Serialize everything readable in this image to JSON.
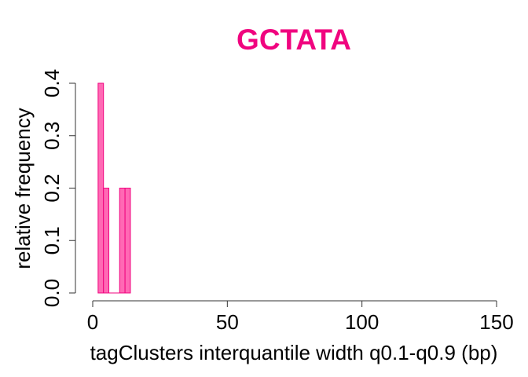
{
  "chart_data": {
    "type": "bar",
    "title": "GCTATA",
    "xlabel": "tagClusters interquantile width q0.1-q0.9 (bp)",
    "ylabel": "relative frequency",
    "xlim": [
      0,
      150
    ],
    "ylim": [
      0,
      0.4
    ],
    "xticks": [
      "0",
      "50",
      "100",
      "150"
    ],
    "yticks": [
      "0.0",
      "0.1",
      "0.2",
      "0.3",
      "0.4"
    ],
    "bin_width": 2,
    "bins": [
      {
        "x0": 2,
        "x1": 4,
        "value": 0.4
      },
      {
        "x0": 4,
        "x1": 6,
        "value": 0.2
      },
      {
        "x0": 6,
        "x1": 8,
        "value": 0.0
      },
      {
        "x0": 8,
        "x1": 10,
        "value": 0.0
      },
      {
        "x0": 10,
        "x1": 12,
        "value": 0.2
      },
      {
        "x0": 12,
        "x1": 14,
        "value": 0.2
      }
    ],
    "grid": false,
    "colors": {
      "title": "#f0047f",
      "bar_fill": "#ff69b4",
      "bar_stroke": "#f0047f"
    }
  }
}
